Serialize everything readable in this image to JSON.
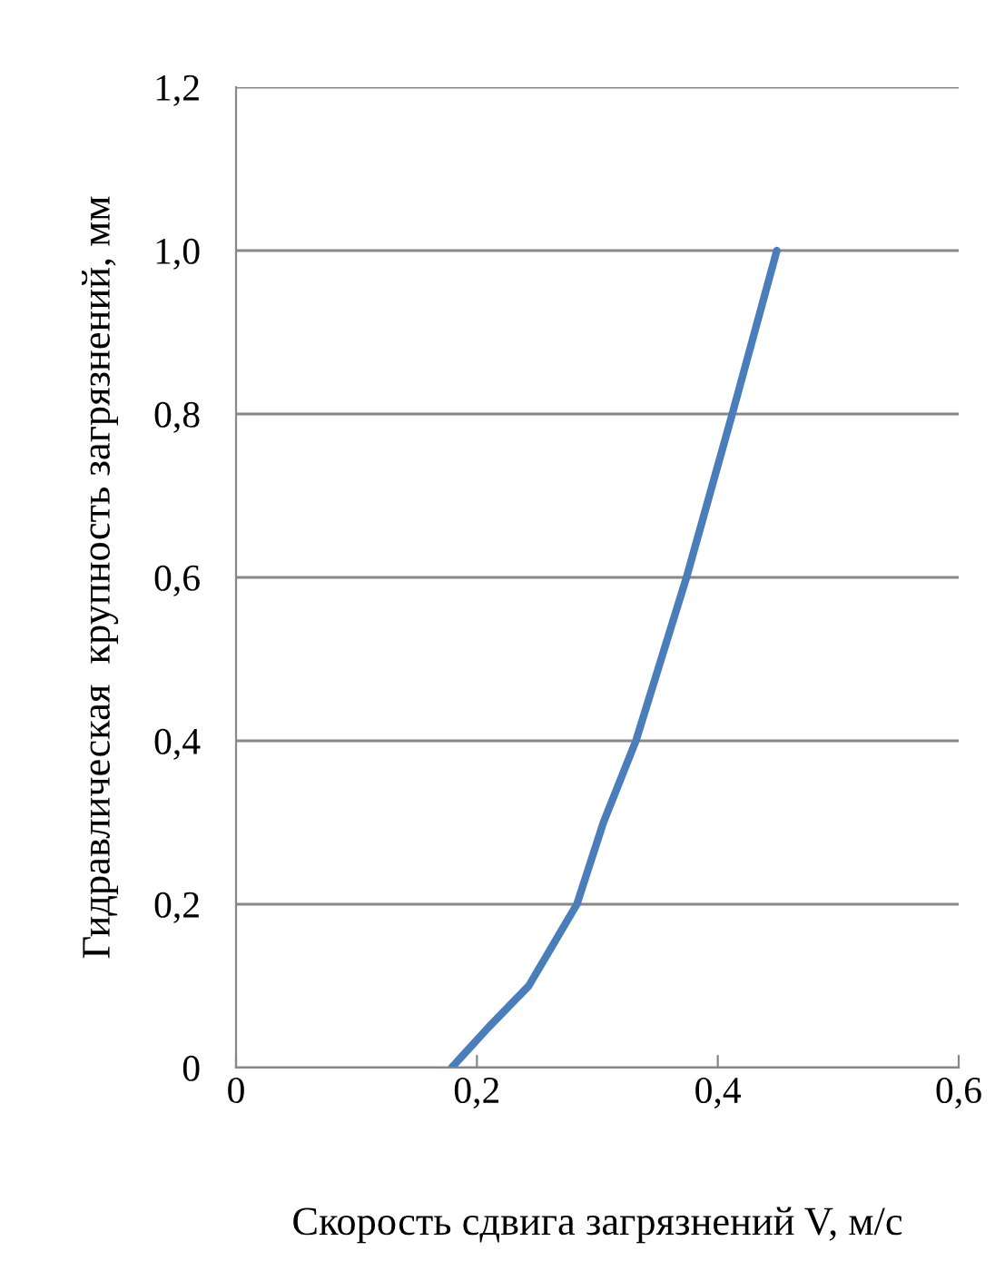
{
  "chart_data": {
    "type": "line",
    "xlabel": "Скорость сдвига загрязнений V, м/с",
    "ylabel": "Гидравлическая  крупность загрязнений, мм",
    "series": [
      {
        "color": "#4a7ebb",
        "x": [
          0.179,
          0.21,
          0.243,
          0.283,
          0.305,
          0.332,
          0.374,
          0.412,
          0.449
        ],
        "values": [
          0,
          0.05,
          0.1,
          0.2,
          0.3,
          0.4,
          0.6,
          0.8,
          1.0
        ]
      }
    ],
    "xlim": [
      0,
      0.6
    ],
    "xticks": [
      {
        "value": 0,
        "label": "0"
      },
      {
        "value": 0.2,
        "label": "0,2"
      },
      {
        "value": 0.4,
        "label": "0,4"
      },
      {
        "value": 0.6,
        "label": "0,6"
      }
    ],
    "ylim": [
      0,
      1.2
    ],
    "yticks": [
      {
        "value": 0,
        "label": "0"
      },
      {
        "value": 0.2,
        "label": "0,2"
      },
      {
        "value": 0.4,
        "label": "0,4"
      },
      {
        "value": 0.6,
        "label": "0,6"
      },
      {
        "value": 0.8,
        "label": "0,8"
      },
      {
        "value": 1.0,
        "label": "1,0"
      },
      {
        "value": 1.2,
        "label": "1,2"
      }
    ],
    "grid": "y",
    "marker": "none",
    "line_style": "solid"
  }
}
